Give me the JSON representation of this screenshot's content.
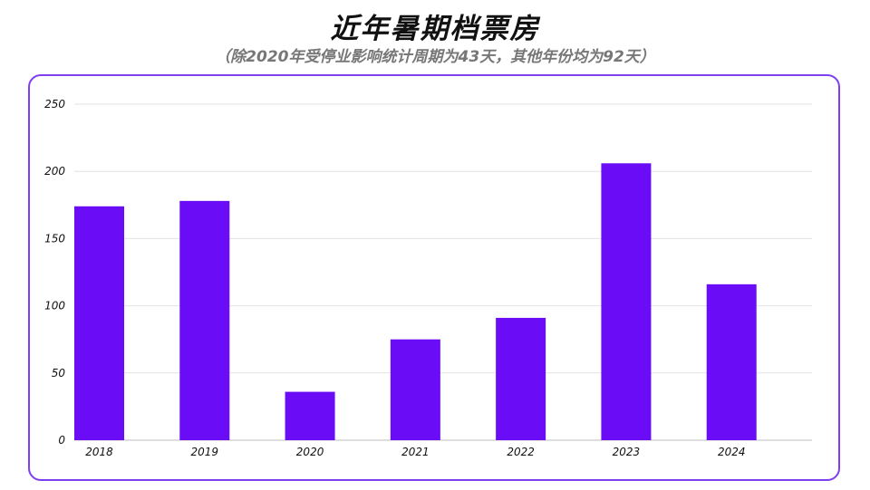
{
  "title": "近年暑期档票房",
  "subtitle": "（除2020年受停业影响统计周期为43天，其他年份均为92天）",
  "colors": {
    "bar": "#6a0cf5",
    "frame": "#7f3ff0",
    "grid": "#e2e2e2"
  },
  "chart_data": {
    "type": "bar",
    "categories": [
      "2018",
      "2019",
      "2020",
      "2021",
      "2022",
      "2023",
      "2024"
    ],
    "values": [
      174,
      178,
      36,
      75,
      91,
      206,
      116
    ],
    "yticks": [
      "0",
      "50",
      "100",
      "150",
      "200",
      "250"
    ],
    "ylim": [
      0,
      250
    ],
    "grid": true
  }
}
